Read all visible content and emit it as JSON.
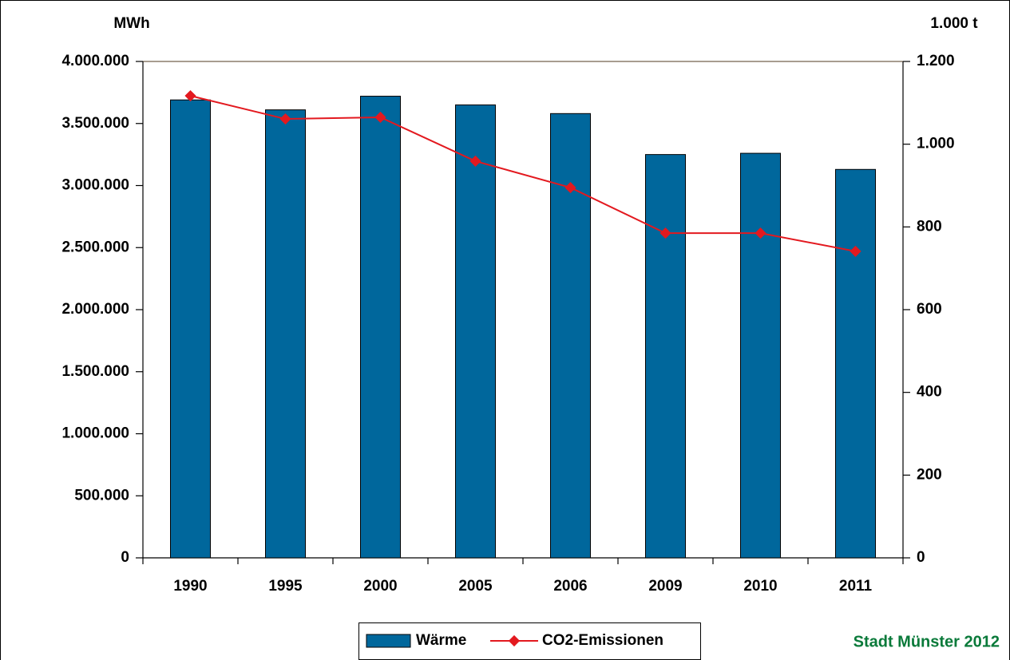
{
  "chart_data": {
    "type": "bar_line",
    "y_label": "MWh",
    "y2_label": "1.000 t",
    "source": "Stadt Münster 2012",
    "categories": [
      "1990",
      "1995",
      "2000",
      "2005",
      "2006",
      "2009",
      "2010",
      "2011"
    ],
    "series": [
      {
        "name": "Wärme",
        "type": "bar",
        "color": "#00679c",
        "values": [
          3690000,
          3610000,
          3720000,
          3650000,
          3580000,
          3250000,
          3260000,
          3130000
        ]
      },
      {
        "name": "CO2-Emissionen",
        "type": "line",
        "axis": "y2",
        "color": "#e3191f",
        "values": [
          1117,
          1061,
          1065,
          959,
          895,
          785,
          785,
          741
        ]
      }
    ],
    "ylim": [
      0,
      4000000
    ],
    "yticks": [
      {
        "value": 0,
        "label": "0"
      },
      {
        "value": 500000,
        "label": "500.000"
      },
      {
        "value": 1000000,
        "label": "1.000.000"
      },
      {
        "value": 1500000,
        "label": "1.500.000"
      },
      {
        "value": 2000000,
        "label": "2.000.000"
      },
      {
        "value": 2500000,
        "label": "2.500.000"
      },
      {
        "value": 3000000,
        "label": "3.000.000"
      },
      {
        "value": 3500000,
        "label": "3.500.000"
      },
      {
        "value": 4000000,
        "label": "4.000.000"
      }
    ],
    "y2lim": [
      0,
      1200
    ],
    "y2ticks": [
      0,
      200,
      400,
      600,
      800,
      {
        "value": 1000,
        "label": "1.000"
      },
      {
        "value": 1200,
        "label": "1.200"
      }
    ],
    "grid": false,
    "legend": "bottom"
  }
}
